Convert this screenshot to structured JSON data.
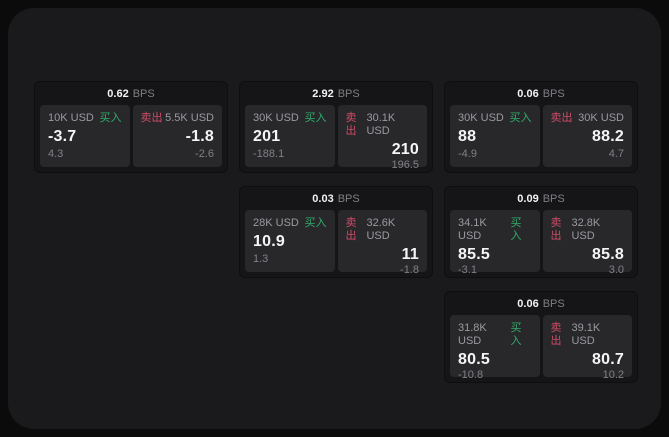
{
  "labels": {
    "buy": "买入",
    "sell": "卖出",
    "bps_unit": "BPS"
  },
  "colors": {
    "background_outer": "#0b0b0c",
    "panel": "#1a1a1c",
    "card": "#151517",
    "pane": "#28282b",
    "buy_green": "#2fae69",
    "sell_red": "#cf4b64",
    "text_primary": "#f5f5f7",
    "text_secondary": "#9a9aa0"
  },
  "cards": [
    {
      "bps": "0.62",
      "grid": {
        "row": 1,
        "col": 1
      },
      "buy": {
        "amount": "10K USD",
        "price": "-3.7",
        "delta": "4.3"
      },
      "sell": {
        "amount": "5.5K USD",
        "price": "-1.8",
        "delta": "-2.6"
      }
    },
    {
      "bps": "2.92",
      "grid": {
        "row": 1,
        "col": 2
      },
      "buy": {
        "amount": "30K USD",
        "price": "201",
        "delta": "-188.1"
      },
      "sell": {
        "amount": "30.1K USD",
        "price": "210",
        "delta": "196.5"
      }
    },
    {
      "bps": "0.06",
      "grid": {
        "row": 1,
        "col": 3
      },
      "buy": {
        "amount": "30K USD",
        "price": "88",
        "delta": "-4.9"
      },
      "sell": {
        "amount": "30K USD",
        "price": "88.2",
        "delta": "4.7"
      }
    },
    {
      "bps": "0.03",
      "grid": {
        "row": 2,
        "col": 2
      },
      "buy": {
        "amount": "28K USD",
        "price": "10.9",
        "delta": "1.3"
      },
      "sell": {
        "amount": "32.6K USD",
        "price": "11",
        "delta": "-1.8"
      }
    },
    {
      "bps": "0.09",
      "grid": {
        "row": 2,
        "col": 3
      },
      "buy": {
        "amount": "34.1K USD",
        "price": "85.5",
        "delta": "-3.1"
      },
      "sell": {
        "amount": "32.8K USD",
        "price": "85.8",
        "delta": "3.0"
      }
    },
    {
      "bps": "0.06",
      "grid": {
        "row": 3,
        "col": 3
      },
      "buy": {
        "amount": "31.8K USD",
        "price": "80.5",
        "delta": "-10.8"
      },
      "sell": {
        "amount": "39.1K USD",
        "price": "80.7",
        "delta": "10.2"
      }
    }
  ]
}
